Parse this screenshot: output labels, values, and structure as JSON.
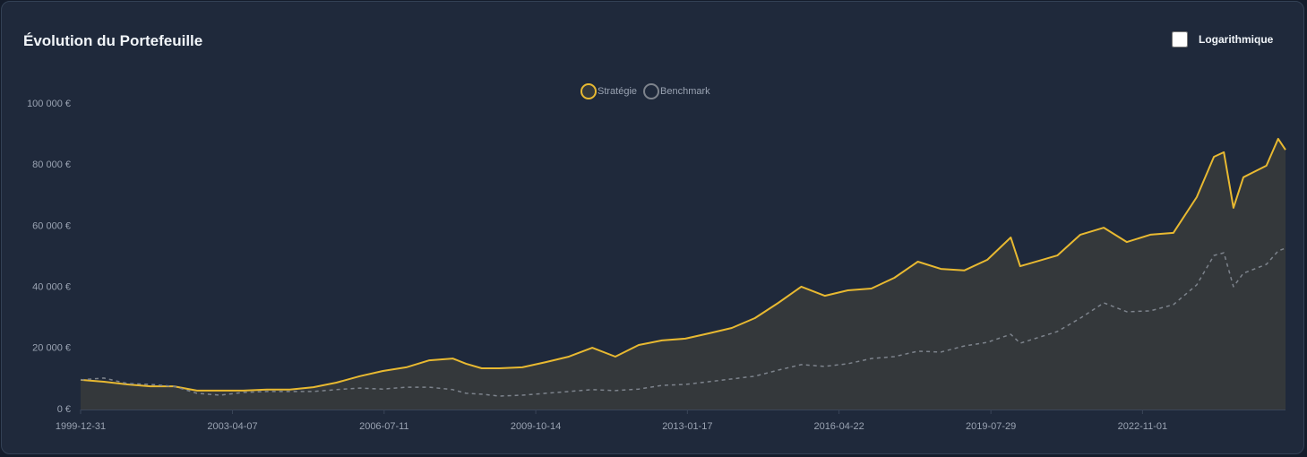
{
  "chart_data": {
    "type": "line",
    "title": "Évolution du Portefeuille",
    "log_scale": false,
    "log_label": "Logarithmique",
    "x": [
      "1999-12-31",
      "2000-07-01",
      "2001-01-01",
      "2001-07-01",
      "2002-01-01",
      "2002-07-01",
      "2003-01-01",
      "2003-07-01",
      "2004-01-01",
      "2004-07-01",
      "2005-01-01",
      "2005-07-01",
      "2006-01-01",
      "2006-07-01",
      "2007-01-01",
      "2007-07-01",
      "2008-01-01",
      "2008-04-15",
      "2008-08-15",
      "2009-01-01",
      "2009-07-01",
      "2010-01-01",
      "2010-07-01",
      "2011-01-01",
      "2011-07-01",
      "2012-01-01",
      "2012-07-01",
      "2013-01-01",
      "2013-07-01",
      "2014-01-01",
      "2014-07-01",
      "2015-01-01",
      "2015-07-01",
      "2016-01-01",
      "2016-07-01",
      "2017-01-01",
      "2017-07-01",
      "2018-01-01",
      "2018-07-01",
      "2019-01-01",
      "2019-07-01",
      "2020-01-01",
      "2020-03-15",
      "2021-01-01",
      "2021-07-01",
      "2022-01-01",
      "2022-07-01",
      "2023-01-01",
      "2023-07-01",
      "2024-01-01",
      "2024-05-15",
      "2024-08-01",
      "2024-10-15",
      "2025-01-01",
      "2025-07-01",
      "2025-10-01",
      "2025-11-28"
    ],
    "series": [
      {
        "name": "Stratégie",
        "color": "#e8b931",
        "area_color": "#34383b",
        "dashed": false,
        "values": [
          9700,
          9100,
          8200,
          7600,
          7600,
          6200,
          6200,
          6200,
          6500,
          6500,
          7300,
          8800,
          10900,
          12600,
          13800,
          16100,
          16700,
          15000,
          13500,
          13500,
          13800,
          15500,
          17300,
          20200,
          17300,
          21100,
          22600,
          23200,
          24900,
          26700,
          29900,
          34900,
          40200,
          37200,
          39000,
          39600,
          43100,
          48400,
          46000,
          45500,
          49000,
          56300,
          46900,
          50400,
          57200,
          59500,
          54800,
          57200,
          57800,
          69500,
          82700,
          84200,
          66000,
          76000,
          79800,
          88600,
          85000
        ]
      },
      {
        "name": "Benchmark",
        "color": "#7d838c",
        "dashed": true,
        "values": [
          9700,
          10300,
          8500,
          8200,
          7600,
          5300,
          4700,
          5600,
          5900,
          5900,
          5900,
          6500,
          7000,
          6700,
          7300,
          7300,
          6500,
          5300,
          5000,
          4400,
          4700,
          5300,
          5900,
          6500,
          6200,
          6700,
          7900,
          8200,
          9100,
          10000,
          10900,
          12900,
          14700,
          14100,
          15000,
          16700,
          17300,
          19100,
          18800,
          20800,
          22000,
          24600,
          21700,
          25500,
          29900,
          34900,
          32000,
          32300,
          34300,
          40800,
          50400,
          51300,
          40200,
          44600,
          47500,
          51900,
          52800
        ]
      }
    ],
    "xlim": [
      "1999-12-31",
      "2025-11-28"
    ],
    "xticks": [
      "1999-12-31",
      "2003-04-07",
      "2006-07-11",
      "2009-10-14",
      "2013-01-17",
      "2016-04-22",
      "2019-07-29",
      "2022-11-01"
    ],
    "ylim": [
      0,
      100000
    ],
    "yticks": [
      {
        "value": 0,
        "label": "0 €"
      },
      {
        "value": 20000,
        "label": "20 000 €"
      },
      {
        "value": 40000,
        "label": "40 000 €"
      },
      {
        "value": 60000,
        "label": "60 000 €"
      },
      {
        "value": 80000,
        "label": "80 000 €"
      },
      {
        "value": 100000,
        "label": "100 000 €"
      }
    ]
  }
}
